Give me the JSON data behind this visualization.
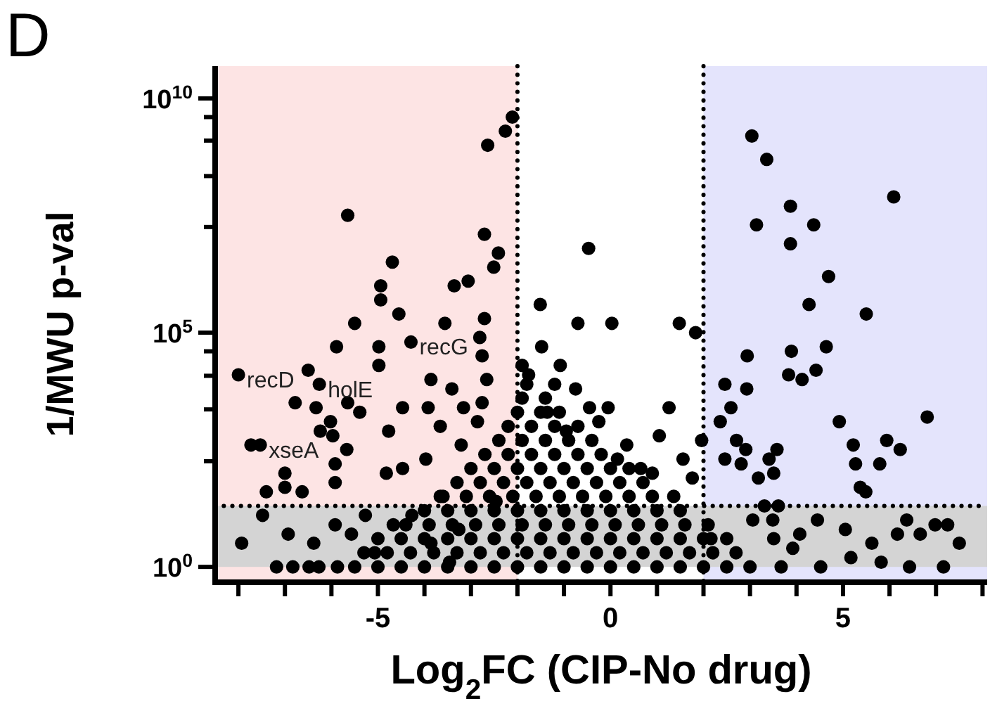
{
  "chart_data": {
    "type": "scatter",
    "title": "D",
    "xlabel": "Log$_{2}$FC (CIP-No drug)",
    "ylabel": "1/MWU p-val",
    "log": "y",
    "marker": "circle",
    "color": "#000000",
    "xlim": [
      -8.5,
      8.1
    ],
    "xticks": [
      {
        "value": -8,
        "label": null
      },
      {
        "value": -7,
        "label": null
      },
      {
        "value": -6,
        "label": null
      },
      -5,
      {
        "value": -4,
        "label": null
      },
      {
        "value": -3,
        "label": null
      },
      {
        "value": -2,
        "label": null
      },
      {
        "value": -1,
        "label": null
      },
      0,
      {
        "value": 1,
        "label": null
      },
      {
        "value": 2,
        "label": null
      },
      {
        "value": 3,
        "label": null
      },
      {
        "value": 4,
        "label": null
      },
      5,
      {
        "value": 6,
        "label": null
      },
      {
        "value": 7,
        "label": null
      },
      {
        "value": 8,
        "label": null
      }
    ],
    "ylim": [
      0.47,
      49000000000.0
    ],
    "yticks": [
      {
        "value": 1,
        "label": "10$^{0}$"
      },
      {
        "value": 180,
        "label": null
      },
      {
        "value": 2300,
        "label": null
      },
      {
        "value": 12000,
        "label": null
      },
      {
        "value": 40000,
        "label": null
      },
      {
        "value": 100000,
        "label": "10$^{5}$"
      },
      {
        "value": 18000000.0,
        "label": null
      },
      {
        "value": 220000000.0,
        "label": null
      },
      {
        "value": 1260000000.0,
        "label": null
      },
      {
        "value": 4000000000.0,
        "label": null
      },
      {
        "value": 10000000000.0,
        "label": "10$^{10}$"
      }
    ],
    "bands": [
      {
        "axis": "x",
        "from": -8.5,
        "to": -2,
        "color": "#fde4e4"
      },
      {
        "axis": "x",
        "from": 2,
        "to": 8.1,
        "color": "#e4e4fc"
      },
      {
        "axis": "y",
        "from": 1,
        "to": 20,
        "color": "#d4d4d4"
      }
    ],
    "ref_lines": [
      {
        "axis": "x",
        "value": -2,
        "line_style": "dotted"
      },
      {
        "axis": "x",
        "value": 2,
        "line_style": "dotted"
      },
      {
        "axis": "y",
        "value": 20,
        "line_style": "dotted"
      }
    ],
    "annotations": [
      {
        "text": "recD",
        "x": -8.0,
        "y": 12600
      },
      {
        "text": "holE",
        "x": -6.26,
        "y": 7900
      },
      {
        "text": "recG",
        "x": -4.29,
        "y": 63000
      },
      {
        "text": "xseA",
        "x": -7.53,
        "y": 400
      }
    ],
    "x": [
      -2.11,
      -2.26,
      -2.64,
      -5.65,
      -2.71,
      -2.41,
      -2.51,
      -4.69,
      -4.94,
      -4.94,
      -3.36,
      -3.06,
      -4.55,
      -5.5,
      -3.56,
      -2.71,
      -5.89,
      -4.98,
      -4.29,
      -8.0,
      -6.5,
      -6.26,
      -6.78,
      -6.33,
      -5.65,
      -5.39,
      -6.02,
      -6.24,
      -4.98,
      -7.73,
      -7.53,
      -5.97,
      -7.0,
      -5.92,
      -5.67,
      -4.77,
      -4.47,
      -3.86,
      -3.41,
      -3.92,
      -3.16,
      -3.66,
      -3.21,
      -3.97,
      -5.92,
      -7.4,
      -7.0,
      -6.63,
      -4.82,
      -4.47,
      -2.76,
      -2.81,
      -2.66,
      -2.76,
      -2.86,
      -7.93,
      -7.48,
      -6.93,
      -7.18,
      -6.83,
      -6.48,
      -6.38,
      -5.92,
      -5.57,
      -5.27,
      -5.07,
      -4.67,
      -4.27,
      -3.86,
      -3.46,
      -3.26,
      -3.66,
      -2.46,
      -5.87,
      -6.27,
      -1.51,
      -0.7,
      0.03,
      1.48,
      1.83,
      -1.48,
      -1.08,
      -0.75,
      -0.45,
      -0.05,
      1.26,
      0.35,
      1.05,
      1.96,
      1.56,
      0.9,
      1.36,
      1.76,
      -1.76,
      -1.36,
      -0.95,
      -0.25,
      0.15,
      0.65,
      -0.47,
      3.04,
      3.36,
      6.09,
      3.87,
      3.14,
      4.37,
      3.87,
      4.69,
      4.27,
      5.5,
      4.64,
      3.89,
      2.94,
      3.83,
      4.12,
      4.42,
      2.46,
      2.93,
      2.59,
      2.36,
      4.92,
      6.81,
      5.94,
      6.23,
      5.22,
      5.27,
      5.79,
      5.37,
      5.49,
      2.71,
      2.91,
      3.58,
      3.41,
      2.46,
      2.81,
      3.18,
      3.51,
      4.45,
      5.05,
      6.37,
      6.66,
      6.98,
      7.25,
      7.5,
      5.62,
      5.17,
      6.43,
      7.16,
      5.82,
      6.17,
      3.49,
      3.06,
      3.31,
      3.61,
      3.51,
      4.07,
      3.92,
      4.52,
      3.67,
      2.16,
      -5.5,
      -5,
      -4.5,
      -4,
      -3.5,
      -3,
      -2.5,
      -2,
      -1.5,
      -1,
      -0.5,
      0,
      0.5,
      1,
      1.5,
      2,
      2.5,
      3,
      -5.3,
      -4.8,
      -4.3,
      -3.8,
      -3.3,
      -2.8,
      -2.3,
      -1.8,
      -1.3,
      -0.8,
      -0.3,
      0.2,
      0.7,
      1.2,
      1.7,
      2.2,
      2.7,
      -5,
      -4.5,
      -4,
      -3.5,
      -3,
      -2.5,
      -2,
      -1.5,
      -1,
      -0.5,
      0,
      0.5,
      1,
      1.5,
      2,
      2.5,
      -4.4,
      -3.9,
      -3.4,
      -2.9,
      -2.4,
      -1.9,
      -1.4,
      -0.9,
      -0.4,
      0.1,
      0.6,
      1.1,
      1.6,
      2.1,
      -4,
      -3.5,
      -3,
      -2.5,
      -2,
      -1.5,
      -1,
      -0.5,
      0,
      0.5,
      1,
      1.5,
      -3.6,
      -3.1,
      -2.6,
      -2.1,
      -1.6,
      -1.1,
      -0.6,
      -0.1,
      0.4,
      0.9,
      -3.3,
      -2.8,
      -2.3,
      -1.8,
      -1.3,
      -0.8,
      -0.3,
      0.2,
      0.7,
      -3,
      -2.5,
      -2,
      -1.5,
      -1,
      -0.5,
      0,
      0.4,
      -2.7,
      -2.2,
      -1.7,
      -1.2,
      -0.7,
      -0.2,
      -2.4,
      -1.9,
      -1.4,
      -0.9,
      -0.4,
      -2.2,
      -1.7,
      -1.2,
      -0.7,
      -2,
      -1.5,
      -1.1,
      -1.9,
      -1.4,
      -1.8,
      -1.2,
      -1.9
    ],
    "values": [
      4000000000.0,
      2000000000.0,
      1000000000.0,
      32000000.0,
      12600000.0,
      5000000.0,
      2500000.0,
      3200000.0,
      1000000.0,
      500000.0,
      1000000.0,
      1260000.0,
      250000.0,
      158000.0,
      158000.0,
      200000.0,
      50000.0,
      50000.0,
      63000.0,
      12600.0,
      15800.0,
      7900,
      3200,
      2500,
      3200,
      2000,
      1260,
      790,
      20000.0,
      400,
      400,
      630,
      100,
      158,
      320,
      790,
      2500,
      10000.0,
      6300,
      2500,
      2500,
      1000,
      400,
      200,
      63,
      40,
      50,
      40,
      100,
      126,
      32000.0,
      79000.0,
      10000.0,
      3200,
      1260,
      3.2,
      12.6,
      5,
      1,
      1,
      1,
      3.2,
      7.9,
      5,
      12.6,
      2,
      7.9,
      12.6,
      3.2,
      1.26,
      6.3,
      32,
      25,
      1,
      1,
      400000.0,
      158000.0,
      158000.0,
      158000.0,
      100000.0,
      50000.0,
      20000.0,
      6300,
      2500,
      2500,
      2500,
      400,
      630,
      500,
      200,
      100,
      32,
      79,
      12600.0,
      2000,
      790,
      1260,
      200,
      126,
      6300000.0,
      1580000000.0,
      500000000.0,
      79000000.0,
      50000000.0,
      20000000.0,
      20000000.0,
      7900000.0,
      1580000.0,
      400000.0,
      250000.0,
      50000.0,
      40000.0,
      32000.0,
      12600.0,
      10000.0,
      15800.0,
      7900,
      6300,
      2500,
      1260,
      1260,
      1580,
      500,
      320,
      400,
      158,
      158,
      50,
      40,
      500,
      320,
      320,
      200,
      200,
      158,
      79,
      100,
      10,
      6.3,
      10,
      5,
      7.9,
      7.9,
      3.2,
      3.2,
      1.58,
      1,
      1,
      1.26,
      5,
      10,
      10,
      20,
      20,
      4,
      5,
      2.5,
      1,
      1,
      4,
      1,
      1,
      1,
      1,
      1,
      1,
      1,
      1,
      1,
      1,
      1,
      1,
      1,
      1,
      1,
      1,
      1,
      1,
      2,
      2,
      2,
      2,
      2,
      2,
      2,
      2,
      2,
      2,
      2,
      2,
      2,
      2,
      2,
      2,
      2,
      4,
      4,
      4,
      4,
      4,
      4,
      4,
      4,
      4,
      4,
      4,
      4,
      4,
      4,
      4,
      4,
      7.9,
      7.9,
      7.9,
      7.9,
      7.9,
      7.9,
      7.9,
      7.9,
      7.9,
      7.9,
      7.9,
      7.9,
      7.9,
      7.9,
      15.8,
      15.8,
      15.8,
      15.8,
      15.8,
      15.8,
      15.8,
      15.8,
      15.8,
      15.8,
      15.8,
      15.8,
      32,
      32,
      32,
      32,
      32,
      32,
      32,
      32,
      32,
      32,
      63,
      63,
      63,
      63,
      63,
      63,
      63,
      63,
      63,
      126,
      126,
      126,
      126,
      126,
      126,
      126,
      126,
      251,
      251,
      251,
      251,
      251,
      251,
      500,
      500,
      500,
      500,
      500,
      1000,
      1000,
      1000,
      1000,
      2000,
      2000,
      2000,
      4000,
      4000,
      7900,
      7900,
      20000
    ]
  }
}
